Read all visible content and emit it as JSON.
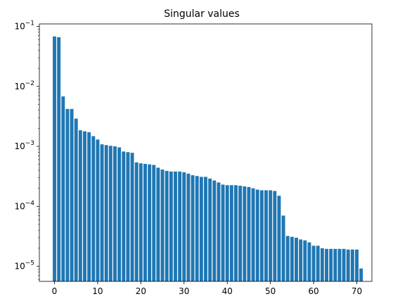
{
  "chart_data": {
    "type": "bar",
    "title": "Singular values",
    "xlabel": "",
    "ylabel": "",
    "yscale": "log",
    "xlim": [
      -3.5,
      73.5
    ],
    "ylim": [
      5.6e-06,
      0.11
    ],
    "grid": false,
    "bar_color": "#1f77b4",
    "x": [
      0,
      1,
      2,
      3,
      4,
      5,
      6,
      7,
      8,
      9,
      10,
      11,
      12,
      13,
      14,
      15,
      16,
      17,
      18,
      19,
      20,
      21,
      22,
      23,
      24,
      25,
      26,
      27,
      28,
      29,
      30,
      31,
      32,
      33,
      34,
      35,
      36,
      37,
      38,
      39,
      40,
      41,
      42,
      43,
      44,
      45,
      46,
      47,
      48,
      49,
      50,
      51,
      52,
      53,
      54,
      55,
      56,
      57,
      58,
      59,
      60,
      61,
      62,
      63,
      64,
      65,
      66,
      67,
      68,
      69,
      70,
      71
    ],
    "values": [
      0.068,
      0.066,
      0.0068,
      0.0042,
      0.0042,
      0.0029,
      0.00185,
      0.00178,
      0.00172,
      0.00148,
      0.0013,
      0.00108,
      0.00105,
      0.00102,
      0.001,
      0.00096,
      0.00082,
      0.0008,
      0.00078,
      0.00054,
      0.00052,
      0.00051,
      0.0005,
      0.00049,
      0.00044,
      0.00041,
      0.00039,
      0.00038,
      0.00038,
      0.00038,
      0.00037,
      0.00035,
      0.00033,
      0.00032,
      0.00031,
      0.00031,
      0.00029,
      0.00027,
      0.00025,
      0.00023,
      0.000225,
      0.000225,
      0.000225,
      0.00022,
      0.000215,
      0.00021,
      0.0002,
      0.00019,
      0.000185,
      0.000185,
      0.000185,
      0.00018,
      0.00015,
      7e-05,
      3.2e-05,
      3.1e-05,
      3e-05,
      2.8e-05,
      2.7e-05,
      2.5e-05,
      2.2e-05,
      2.2e-05,
      2e-05,
      1.95e-05,
      1.95e-05,
      1.95e-05,
      1.95e-05,
      1.95e-05,
      1.9e-05,
      1.9e-05,
      1.9e-05,
      9.2e-06
    ],
    "x_ticks": [
      0,
      10,
      20,
      30,
      40,
      50,
      60,
      70
    ],
    "x_tick_labels": [
      "0",
      "10",
      "20",
      "30",
      "40",
      "50",
      "60",
      "70"
    ],
    "y_ticks": [
      1e-05,
      0.0001,
      0.001,
      0.01,
      0.1
    ],
    "y_tick_labels": [
      {
        "base": "10",
        "exp": "−5"
      },
      {
        "base": "10",
        "exp": "−4"
      },
      {
        "base": "10",
        "exp": "−3"
      },
      {
        "base": "10",
        "exp": "−2"
      },
      {
        "base": "10",
        "exp": "−1"
      }
    ]
  }
}
